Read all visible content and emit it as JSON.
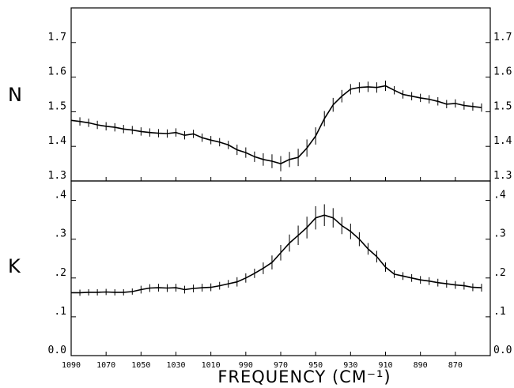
{
  "chart_data": [
    {
      "type": "line",
      "panel_label": "N",
      "ylim": [
        1.3,
        1.8
      ],
      "yticks": [
        "1.3",
        "1.4",
        "1.5",
        "1.6",
        "1.7"
      ],
      "x": [
        1090,
        1085,
        1080,
        1075,
        1070,
        1065,
        1060,
        1055,
        1050,
        1045,
        1040,
        1035,
        1030,
        1025,
        1020,
        1015,
        1010,
        1005,
        1000,
        995,
        990,
        985,
        980,
        975,
        970,
        965,
        960,
        955,
        950,
        945,
        940,
        935,
        930,
        925,
        920,
        915,
        910,
        905,
        900,
        895,
        890,
        885,
        880,
        875,
        870,
        865,
        860,
        855
      ],
      "series": [
        {
          "values": [
            1.475,
            1.472,
            1.468,
            1.462,
            1.458,
            1.455,
            1.45,
            1.447,
            1.443,
            1.44,
            1.438,
            1.437,
            1.44,
            1.432,
            1.436,
            1.425,
            1.418,
            1.412,
            1.404,
            1.39,
            1.382,
            1.37,
            1.362,
            1.357,
            1.35,
            1.362,
            1.368,
            1.395,
            1.43,
            1.48,
            1.52,
            1.545,
            1.565,
            1.57,
            1.572,
            1.57,
            1.575,
            1.562,
            1.55,
            1.545,
            1.54,
            1.536,
            1.53,
            1.522,
            1.524,
            1.518,
            1.515,
            1.512
          ],
          "errors": [
            0.012,
            0.012,
            0.012,
            0.012,
            0.012,
            0.012,
            0.012,
            0.012,
            0.012,
            0.012,
            0.012,
            0.012,
            0.012,
            0.012,
            0.012,
            0.012,
            0.012,
            0.012,
            0.012,
            0.015,
            0.015,
            0.015,
            0.018,
            0.02,
            0.022,
            0.022,
            0.025,
            0.025,
            0.025,
            0.022,
            0.02,
            0.018,
            0.015,
            0.015,
            0.015,
            0.015,
            0.015,
            0.012,
            0.012,
            0.012,
            0.012,
            0.012,
            0.012,
            0.012,
            0.012,
            0.012,
            0.012,
            0.012
          ]
        }
      ]
    },
    {
      "type": "line",
      "panel_label": "K",
      "ylim": [
        0.0,
        0.45
      ],
      "yticks": [
        "0.0",
        ".1",
        ".2",
        ".3",
        ".4"
      ],
      "x": [
        1090,
        1085,
        1080,
        1075,
        1070,
        1065,
        1060,
        1055,
        1050,
        1045,
        1040,
        1035,
        1030,
        1025,
        1020,
        1015,
        1010,
        1005,
        1000,
        995,
        990,
        985,
        980,
        975,
        970,
        965,
        960,
        955,
        950,
        945,
        940,
        935,
        930,
        925,
        920,
        915,
        910,
        905,
        900,
        895,
        890,
        885,
        880,
        875,
        870,
        865,
        860,
        855
      ],
      "series": [
        {
          "values": [
            0.162,
            0.162,
            0.163,
            0.163,
            0.164,
            0.163,
            0.163,
            0.165,
            0.17,
            0.174,
            0.175,
            0.174,
            0.175,
            0.17,
            0.173,
            0.175,
            0.176,
            0.18,
            0.185,
            0.19,
            0.2,
            0.212,
            0.225,
            0.24,
            0.265,
            0.29,
            0.31,
            0.33,
            0.355,
            0.362,
            0.355,
            0.335,
            0.32,
            0.3,
            0.275,
            0.255,
            0.228,
            0.21,
            0.205,
            0.2,
            0.195,
            0.192,
            0.188,
            0.185,
            0.182,
            0.18,
            0.176,
            0.175
          ],
          "errors": [
            0.008,
            0.008,
            0.008,
            0.008,
            0.008,
            0.008,
            0.008,
            0.008,
            0.01,
            0.01,
            0.01,
            0.01,
            0.01,
            0.01,
            0.01,
            0.01,
            0.01,
            0.01,
            0.01,
            0.012,
            0.012,
            0.012,
            0.015,
            0.018,
            0.02,
            0.022,
            0.025,
            0.028,
            0.03,
            0.028,
            0.025,
            0.022,
            0.02,
            0.018,
            0.015,
            0.015,
            0.012,
            0.01,
            0.01,
            0.01,
            0.01,
            0.01,
            0.01,
            0.01,
            0.01,
            0.01,
            0.01,
            0.01
          ]
        }
      ]
    }
  ],
  "x_axis": {
    "label": "FREQUENCY (CM⁻¹)",
    "xlim": [
      1090,
      850
    ],
    "ticks": [
      "1090",
      "1070",
      "1050",
      "1030",
      "1010",
      "990",
      "970",
      "950",
      "930",
      "910",
      "890",
      "870"
    ]
  }
}
